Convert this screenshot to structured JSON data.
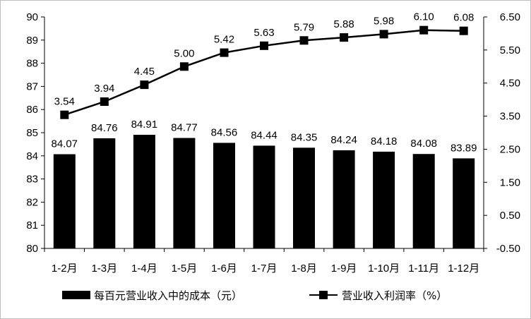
{
  "chart_data": {
    "type": "bar+line",
    "categories": [
      "1-2月",
      "1-3月",
      "1-4月",
      "1-5月",
      "1-6月",
      "1-7月",
      "1-8月",
      "1-9月",
      "1-10月",
      "1-11月",
      "1-12月"
    ],
    "series": [
      {
        "name": "每百元营业收入中的成本（元）",
        "type": "bar",
        "axis": "left",
        "color": "#000000",
        "values": [
          84.07,
          84.76,
          84.91,
          84.77,
          84.56,
          84.44,
          84.35,
          84.24,
          84.18,
          84.08,
          83.89
        ],
        "labels": [
          "84.07",
          "84.76",
          "84.91",
          "84.77",
          "84.56",
          "84.44",
          "84.35",
          "84.24",
          "84.18",
          "84.08",
          "83.89"
        ]
      },
      {
        "name": "营业收入利润率（%）",
        "type": "line",
        "axis": "right",
        "color": "#000000",
        "marker": "square",
        "values": [
          3.54,
          3.94,
          4.45,
          5.0,
          5.42,
          5.63,
          5.79,
          5.88,
          5.98,
          6.1,
          6.08
        ],
        "labels": [
          "3.54",
          "3.94",
          "4.45",
          "5.00",
          "5.42",
          "5.63",
          "5.79",
          "5.88",
          "5.98",
          "6.10",
          "6.08"
        ]
      }
    ],
    "y_left": {
      "min": 80,
      "max": 90,
      "ticks": [
        80,
        81,
        82,
        83,
        84,
        85,
        86,
        87,
        88,
        89,
        90
      ],
      "tick_labels": [
        "80",
        "81",
        "82",
        "83",
        "84",
        "85",
        "86",
        "87",
        "88",
        "89",
        "90"
      ]
    },
    "y_right": {
      "min": -0.5,
      "max": 6.5,
      "ticks": [
        -0.5,
        0.5,
        1.5,
        2.5,
        3.5,
        4.5,
        5.5,
        6.5
      ],
      "tick_labels": [
        "-0.50",
        "0.50",
        "1.50",
        "2.50",
        "3.50",
        "4.50",
        "5.50",
        "6.50"
      ]
    },
    "title": "",
    "xlabel": "",
    "grid": false,
    "legend_position": "bottom"
  }
}
